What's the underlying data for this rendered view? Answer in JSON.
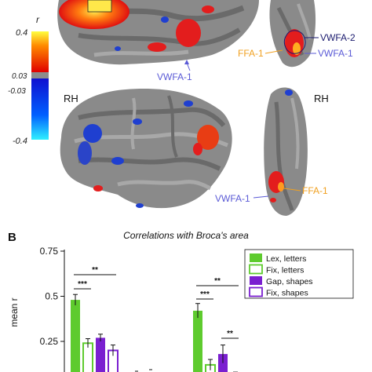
{
  "panel_a": {
    "colorbar": {
      "symbol": "r",
      "top": "0.4",
      "upper_threshold": "0.03",
      "lower_threshold": "-0.03",
      "bottom": "-0.4"
    },
    "hemisphere_label": "RH",
    "hemisphere_label_ventral": "RH",
    "annotations": {
      "vwfa1_lateral": "VWFA-1",
      "vwfa2": "VWFA-2",
      "ffa1_top": "FFA-1",
      "vwfa1_top": "VWFA-1",
      "vwfa1_bottom": "VWFA-1",
      "ffa1_bottom": "FFA-1"
    },
    "colors": {
      "vwfa": "#5a5ad6",
      "vwfa2": "#1a1a6e",
      "ffa": "#f0a020",
      "cortex_dark": "#6e6e6e",
      "cortex_light": "#9a9a9a"
    }
  },
  "panel_b": {
    "panel_letter": "B",
    "chart_data": {
      "type": "bar",
      "title": "Correlations with Broca's area",
      "ylabel": "mean r",
      "ylim": [
        0,
        0.75
      ],
      "y_ticks": [
        "0.75",
        "0.5",
        "0.25"
      ],
      "groups": 2,
      "series": [
        {
          "name": "Lex, letters",
          "values": [
            0.48,
            0.42
          ],
          "errors": [
            0.03,
            0.04
          ],
          "color": "#5ecb2e",
          "filled": true
        },
        {
          "name": "Fix, letters",
          "values": [
            0.24,
            0.12
          ],
          "errors": [
            0.025,
            0.03
          ],
          "color": "#5ecb2e",
          "filled": false
        },
        {
          "name": "Gap, shapes",
          "values": [
            0.27,
            0.18
          ],
          "errors": [
            0.02,
            0.05
          ],
          "color": "#7a1fd0",
          "filled": true
        },
        {
          "name": "Fix, shapes",
          "values": [
            0.2,
            0.05
          ],
          "errors": [
            0.03,
            0.03
          ],
          "color": "#7a1fd0",
          "filled": false
        }
      ],
      "significance": [
        {
          "label": "***",
          "group": 0,
          "from": 0,
          "to": 1
        },
        {
          "label": "**",
          "group": 0,
          "from": 0,
          "to": 3
        },
        {
          "label": "***",
          "group": 1,
          "from": 0,
          "to": 1
        },
        {
          "label": "**",
          "group": 1,
          "from": 0,
          "to": 3
        },
        {
          "label": "**",
          "group": 1,
          "from": 2,
          "to": 3
        }
      ],
      "legend_position": "top-right"
    }
  }
}
